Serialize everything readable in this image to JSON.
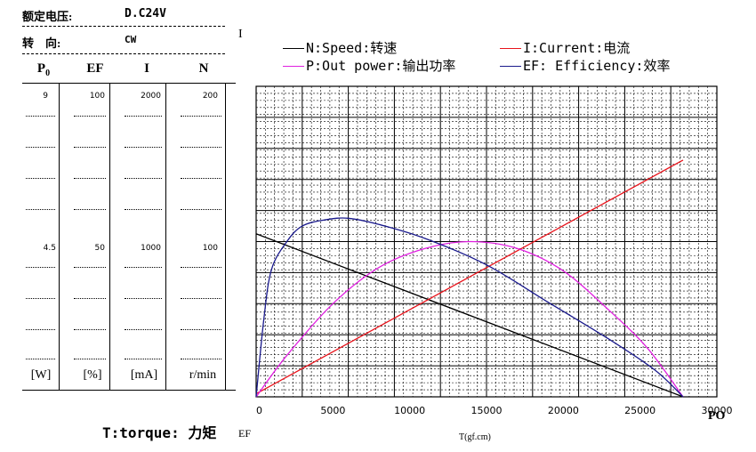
{
  "header": {
    "voltage_label": "额定电压:",
    "voltage_value": "D.C24V",
    "direction_label": "转    向:",
    "direction_value": "CW"
  },
  "table": {
    "columns": [
      "P0",
      "EF",
      "I",
      "N"
    ],
    "rows_top": [
      "9",
      "100",
      "2000",
      "200"
    ],
    "rows_mid": [
      "4.5",
      "50",
      "1000",
      "100"
    ],
    "units": [
      "[W]",
      "[%]",
      "[mA]",
      "r/min"
    ]
  },
  "torque_label": "T:torque: 力矩",
  "left_markers": {
    "top": "I",
    "bottom": "EF"
  },
  "right_marker": "PO",
  "legend": {
    "speed": "N:Speed:转速",
    "current": "I:Current:电流",
    "power": "P:Out power:输出功率",
    "efficiency": "EF: Efficiency:效率"
  },
  "colors": {
    "speed": "#000000",
    "current": "#e8141c",
    "power": "#e020e0",
    "efficiency": "#1a1a8c"
  },
  "chart_data": {
    "type": "line",
    "xlabel": "T(gf.cm)",
    "xlim": [
      0,
      30000
    ],
    "x_ticks": [
      0,
      5000,
      10000,
      15000,
      20000,
      25000,
      30000
    ],
    "series": [
      {
        "name": "N:Speed:转速",
        "unit": "r/min",
        "ylim": [
          0,
          400
        ],
        "x": [
          0,
          27800
        ],
        "values": [
          210,
          0
        ]
      },
      {
        "name": "I:Current:电流",
        "unit": "mA",
        "ylim": [
          0,
          4000
        ],
        "x": [
          0,
          27800
        ],
        "values": [
          40,
          3050
        ]
      },
      {
        "name": "P:Out power:输出功率",
        "unit": "W",
        "ylim": [
          0,
          18
        ],
        "x": [
          0,
          2000,
          5000,
          8000,
          11000,
          13900,
          17000,
          20000,
          23000,
          25500,
          27800
        ],
        "values": [
          0,
          2.4,
          5.4,
          7.5,
          8.6,
          9.0,
          8.6,
          7.3,
          5.0,
          2.8,
          0
        ]
      },
      {
        "name": "EF: Efficiency:效率",
        "unit": "%",
        "ylim": [
          0,
          200
        ],
        "x": [
          0,
          500,
          1000,
          2000,
          3000,
          4500,
          6000,
          8000,
          11000,
          15000,
          19000,
          23000,
          26000,
          27800
        ],
        "values": [
          0,
          50,
          82,
          100,
          110,
          114,
          115,
          111,
          102,
          85,
          61,
          37,
          17,
          0
        ]
      }
    ]
  }
}
